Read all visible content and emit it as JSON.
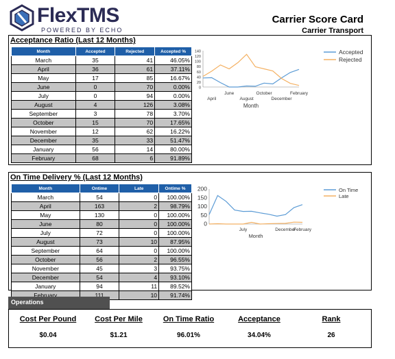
{
  "header": {
    "logo_text": "FlexTMS",
    "logo_sub": "POWERED BY ECHO",
    "report_title": "Carrier Score Card",
    "carrier_name": "Carrier Transport"
  },
  "colors": {
    "table_header": "#1f5fa8",
    "accepted_line": "#5b9bd5",
    "rejected_line": "#f4b163",
    "ops_header": "#505050"
  },
  "acceptance": {
    "title": "Acceptance Ratio (Last 12 Months)",
    "columns": [
      "Month",
      "Accepted",
      "Rejected",
      "Accepted %"
    ],
    "rows": [
      [
        "March",
        "35",
        "41",
        "46.05%"
      ],
      [
        "April",
        "36",
        "61",
        "37.11%"
      ],
      [
        "May",
        "17",
        "85",
        "16.67%"
      ],
      [
        "June",
        "0",
        "70",
        "0.00%"
      ],
      [
        "July",
        "0",
        "94",
        "0.00%"
      ],
      [
        "August",
        "4",
        "126",
        "3.08%"
      ],
      [
        "September",
        "3",
        "78",
        "3.70%"
      ],
      [
        "October",
        "15",
        "70",
        "17.65%"
      ],
      [
        "November",
        "12",
        "62",
        "16.22%"
      ],
      [
        "December",
        "35",
        "33",
        "51.47%"
      ],
      [
        "January",
        "56",
        "14",
        "80.00%"
      ],
      [
        "February",
        "68",
        "6",
        "91.89%"
      ]
    ]
  },
  "ontime": {
    "title": "On Time Delivery % (Last 12 Months)",
    "columns": [
      "Month",
      "Ontime",
      "Late",
      "Ontime %"
    ],
    "rows": [
      [
        "March",
        "54",
        "0",
        "100.00%"
      ],
      [
        "April",
        "163",
        "2",
        "98.79%"
      ],
      [
        "May",
        "130",
        "0",
        "100.00%"
      ],
      [
        "June",
        "80",
        "0",
        "100.00%"
      ],
      [
        "July",
        "72",
        "0",
        "100.00%"
      ],
      [
        "August",
        "73",
        "10",
        "87.95%"
      ],
      [
        "September",
        "64",
        "0",
        "100.00%"
      ],
      [
        "October",
        "56",
        "2",
        "96.55%"
      ],
      [
        "November",
        "45",
        "3",
        "93.75%"
      ],
      [
        "December",
        "54",
        "4",
        "93.10%"
      ],
      [
        "January",
        "94",
        "11",
        "89.52%"
      ],
      [
        "February",
        "111",
        "10",
        "91.74%"
      ]
    ]
  },
  "chart_data": [
    {
      "type": "line",
      "x": [
        "March",
        "April",
        "May",
        "June",
        "July",
        "August",
        "September",
        "October",
        "November",
        "December",
        "January",
        "February"
      ],
      "x_tick_labels_row1": [
        "June",
        "October",
        "February"
      ],
      "x_tick_labels_row2": [
        "April",
        "August",
        "December"
      ],
      "xlabel": "Month",
      "ylabel": "",
      "ylim": [
        0,
        140
      ],
      "y_ticks": [
        0,
        20,
        40,
        60,
        80,
        100,
        120,
        140
      ],
      "legend_position": "top-right",
      "series": [
        {
          "name": "Accepted",
          "values": [
            35,
            36,
            17,
            0,
            0,
            4,
            3,
            15,
            12,
            35,
            56,
            68
          ]
        },
        {
          "name": "Rejected",
          "values": [
            41,
            61,
            85,
            70,
            94,
            126,
            78,
            70,
            62,
            33,
            14,
            6
          ]
        }
      ]
    },
    {
      "type": "line",
      "x": [
        "March",
        "April",
        "May",
        "June",
        "July",
        "August",
        "September",
        "October",
        "November",
        "December",
        "January",
        "February"
      ],
      "x_tick_labels": [
        "July",
        "December",
        "February"
      ],
      "xlabel": "Month",
      "ylabel": "",
      "ylim": [
        0,
        200
      ],
      "y_ticks": [
        0,
        50,
        100,
        150,
        200
      ],
      "legend_position": "top-right",
      "series": [
        {
          "name": "On Time",
          "values": [
            54,
            163,
            130,
            80,
            72,
            73,
            64,
            56,
            45,
            54,
            94,
            111
          ]
        },
        {
          "name": "Late",
          "values": [
            0,
            2,
            0,
            0,
            0,
            10,
            0,
            2,
            3,
            4,
            11,
            10
          ]
        }
      ]
    }
  ],
  "operations": {
    "title": "Operations",
    "metrics": [
      {
        "label": "Cost Per Pound",
        "value": "$0.04"
      },
      {
        "label": "Cost Per Mile",
        "value": "$1.21"
      },
      {
        "label": "On Time Ratio",
        "value": "96.01%"
      },
      {
        "label": "Acceptance",
        "value": "34.04%"
      },
      {
        "label": "Rank",
        "value": "26"
      }
    ]
  }
}
